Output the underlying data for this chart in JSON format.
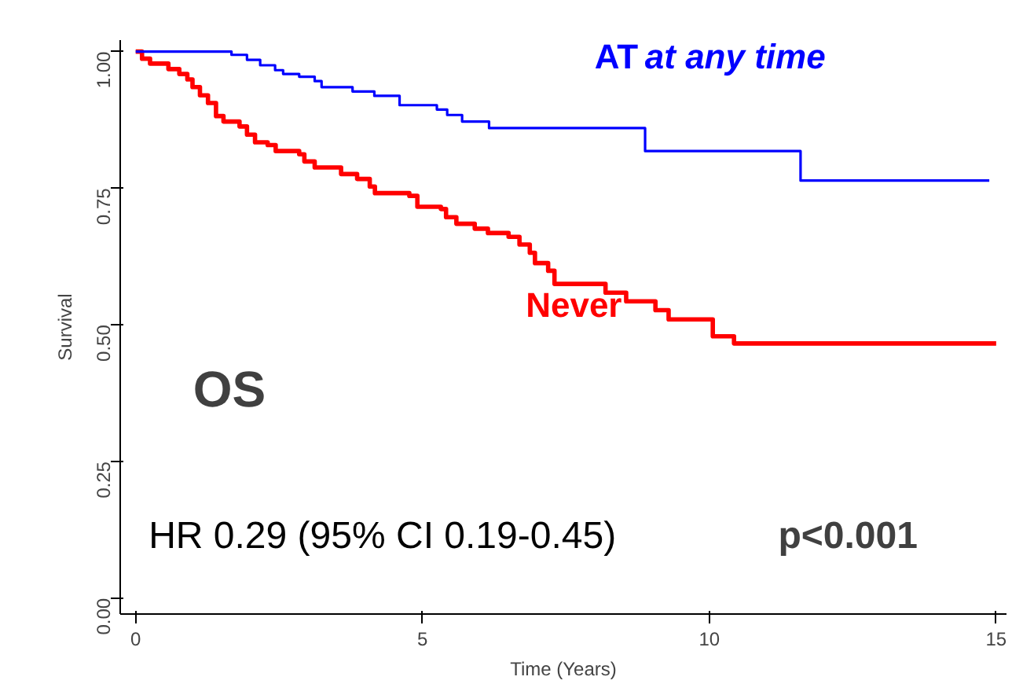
{
  "chart_data": {
    "type": "step",
    "xlabel": "Time (Years)",
    "ylabel": "Survival",
    "xlim": [
      -0.27,
      15.18
    ],
    "ylim": [
      -0.029,
      1.021
    ],
    "xticks": [
      0,
      5,
      10,
      15
    ],
    "yticks": [
      {
        "value": 0,
        "label": "0.00"
      },
      {
        "value": 0.25,
        "label": "0.25"
      },
      {
        "value": 0.5,
        "label": "0.50"
      },
      {
        "value": 0.75,
        "label": "0.75"
      },
      {
        "value": 1,
        "label": "1.00"
      }
    ],
    "grid": false,
    "marker": "none",
    "line_style": "solid",
    "series": [
      {
        "name": "AT at any time",
        "color": "#0000ff",
        "x": [
          0,
          1.67,
          1.94,
          2.17,
          2.43,
          2.57,
          2.85,
          3.12,
          3.24,
          3.78,
          4.16,
          4.6,
          5.25,
          5.43,
          5.69,
          6.16,
          8.88,
          11.59,
          14.88
        ],
        "values": [
          1.0,
          0.994,
          0.985,
          0.975,
          0.966,
          0.959,
          0.954,
          0.946,
          0.935,
          0.927,
          0.919,
          0.902,
          0.894,
          0.884,
          0.872,
          0.86,
          0.818,
          0.764,
          0.764
        ]
      },
      {
        "name": "Never",
        "color": "#ff0000",
        "x": [
          0,
          0.11,
          0.25,
          0.57,
          0.76,
          0.9,
          0.99,
          1.12,
          1.26,
          1.4,
          1.53,
          1.81,
          1.94,
          2.08,
          2.3,
          2.44,
          2.85,
          2.94,
          3.12,
          3.58,
          3.86,
          4.08,
          4.17,
          4.77,
          4.91,
          5.32,
          5.41,
          5.59,
          5.91,
          6.14,
          6.5,
          6.69,
          6.87,
          6.96,
          7.19,
          7.3,
          8.19,
          8.55,
          9.06,
          9.29,
          10.06,
          10.43,
          15.0
        ],
        "values": [
          1.0,
          0.987,
          0.978,
          0.968,
          0.959,
          0.949,
          0.935,
          0.92,
          0.906,
          0.882,
          0.872,
          0.863,
          0.848,
          0.834,
          0.829,
          0.818,
          0.812,
          0.799,
          0.788,
          0.776,
          0.767,
          0.753,
          0.741,
          0.736,
          0.716,
          0.712,
          0.697,
          0.685,
          0.676,
          0.668,
          0.661,
          0.647,
          0.632,
          0.613,
          0.599,
          0.575,
          0.559,
          0.543,
          0.527,
          0.51,
          0.479,
          0.466,
          0.466
        ]
      }
    ],
    "annotations": [
      "OS",
      "HR 0.29 (95% CI 0.19-0.45)",
      "p<0.001"
    ]
  }
}
